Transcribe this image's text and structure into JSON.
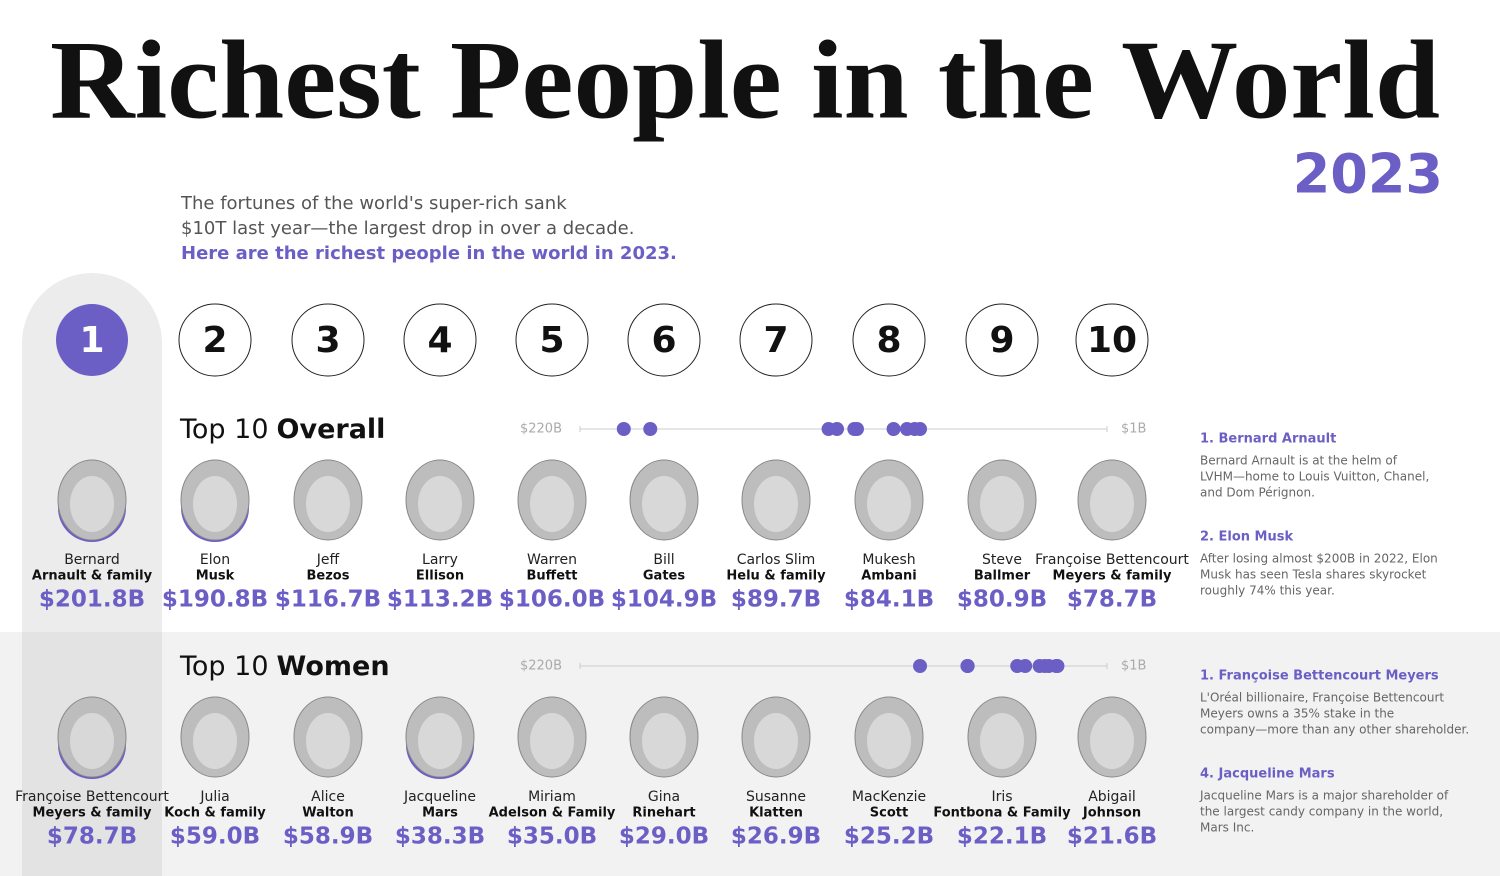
{
  "header": {
    "title": "Richest People in the World",
    "year": "2023",
    "intro": [
      "The fortunes of the world's super-rich sank",
      "$10T last year—the largest drop in over a decade."
    ],
    "highlight": "Here are the richest people in the world in 2023."
  },
  "ranks": [
    1,
    2,
    3,
    4,
    5,
    6,
    7,
    8,
    9,
    10
  ],
  "sections": [
    {
      "heading_light": "Top 10",
      "heading_bold": "Overall",
      "color": "#6b5fc6",
      "xlim": [
        220,
        1
      ],
      "xticks": [
        {
          "value": 220,
          "label": "$220B"
        },
        {
          "value": 1,
          "label": "$1B"
        }
      ],
      "people": [
        {
          "first": "Bernard",
          "last": "Arnault & family",
          "value": 201.8,
          "value_label": "$201.8B"
        },
        {
          "first": "Elon",
          "last": "Musk",
          "value": 190.8,
          "value_label": "$190.8B"
        },
        {
          "first": "Jeff",
          "last": "Bezos",
          "value": 116.7,
          "value_label": "$116.7B"
        },
        {
          "first": "Larry",
          "last": "Ellison",
          "value": 113.2,
          "value_label": "$113.2B"
        },
        {
          "first": "Warren",
          "last": "Buffett",
          "value": 106.0,
          "value_label": "$106.0B"
        },
        {
          "first": "Bill",
          "last": "Gates",
          "value": 104.9,
          "value_label": "$104.9B"
        },
        {
          "first": "Carlos Slim",
          "last": "Helu & family",
          "value": 89.7,
          "value_label": "$89.7B"
        },
        {
          "first": "Mukesh",
          "last": "Ambani",
          "value": 84.1,
          "value_label": "$84.1B"
        },
        {
          "first": "Steve",
          "last": "Ballmer",
          "value": 80.9,
          "value_label": "$80.9B"
        },
        {
          "first": "Françoise Bettencourt",
          "last": "Meyers & family",
          "value": 78.7,
          "value_label": "$78.7B"
        }
      ],
      "notes": [
        {
          "title": "1. Bernard Arnault",
          "lines": [
            "Bernard Arnault is at the helm of",
            "LVHM—home to Louis Vuitton, Chanel,",
            "and Dom Pérignon."
          ]
        },
        {
          "title": "2. Elon Musk",
          "lines": [
            "After losing almost $200B in 2022, Elon",
            "Musk has seen Tesla shares skyrocket",
            "roughly 74% this year."
          ]
        }
      ]
    },
    {
      "heading_light": "Top 10",
      "heading_bold": "Women",
      "color": "#6b5fc6",
      "xlim": [
        220,
        1
      ],
      "xticks": [
        {
          "value": 220,
          "label": "$220B"
        },
        {
          "value": 1,
          "label": "$1B"
        }
      ],
      "people": [
        {
          "first": "Françoise Bettencourt",
          "last": "Meyers & family",
          "value": 78.7,
          "value_label": "$78.7B"
        },
        {
          "first": "Julia",
          "last": "Koch & family",
          "value": 59.0,
          "value_label": "$59.0B"
        },
        {
          "first": "Alice",
          "last": "Walton",
          "value": 58.9,
          "value_label": "$58.9B"
        },
        {
          "first": "Jacqueline",
          "last": "Mars",
          "value": 38.3,
          "value_label": "$38.3B"
        },
        {
          "first": "Miriam",
          "last": "Adelson & Family",
          "value": 35.0,
          "value_label": "$35.0B"
        },
        {
          "first": "Gina",
          "last": "Rinehart",
          "value": 29.0,
          "value_label": "$29.0B"
        },
        {
          "first": "Susanne",
          "last": "Klatten",
          "value": 26.9,
          "value_label": "$26.9B"
        },
        {
          "first": "MacKenzie",
          "last": "Scott",
          "value": 25.2,
          "value_label": "$25.2B"
        },
        {
          "first": "Iris",
          "last": "Fontbona & Family",
          "value": 22.1,
          "value_label": "$22.1B"
        },
        {
          "first": "Abigail",
          "last": "Johnson",
          "value": 21.6,
          "value_label": "$21.6B"
        }
      ],
      "notes": [
        {
          "title": "1. Françoise Bettencourt Meyers",
          "lines": [
            "L'Oréal billionaire, Françoise Bettencourt",
            "Meyers owns a 35% stake in the",
            "company—more than any other shareholder."
          ]
        },
        {
          "title": "4. Jacqueline Mars",
          "lines": [
            "Jacqueline Mars is a major shareholder of",
            "the largest candy company in the world,",
            "Mars Inc."
          ]
        }
      ]
    }
  ]
}
